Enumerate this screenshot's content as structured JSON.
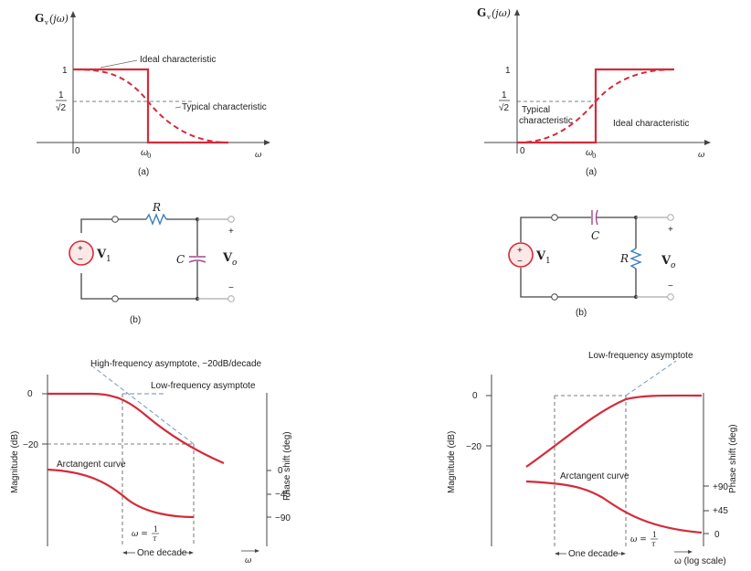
{
  "left": {
    "a": {
      "ylabel": "G",
      "ylabel_sub": "v",
      "ylabel_arg": "(jω)",
      "tick_1": "1",
      "frac_num": "1",
      "frac_den": "√2",
      "ideal": "Ideal characteristic",
      "typical": "Typical characteristic",
      "x0": "0",
      "w0": "ω",
      "w0_sub": "0",
      "w": "ω",
      "caption": "(a)"
    },
    "b": {
      "R": "R",
      "C": "C",
      "V1": "V",
      "V1_sub": "1",
      "Vo": "V",
      "Vo_sub": "o",
      "plus": "+",
      "minus": "−",
      "caption": "(b)"
    },
    "c": {
      "hf": "High-frequency asymptote, −20dB/decade",
      "lf": "Low-frequency asymptote",
      "y0": "0",
      "y20": "−20",
      "mag": "Magnitude (dB)",
      "phase": "Phase shift (deg)",
      "arct": "Arctangent curve",
      "p0": "0",
      "p45": "−45",
      "p90": "−90",
      "wlabel": "ω =",
      "fnum": "1",
      "fden": "τ",
      "decade": "One decade",
      "w": "ω"
    }
  },
  "right": {
    "a": {
      "ylabel": "G",
      "ylabel_sub": "v",
      "ylabel_arg": "(jω)",
      "tick_1": "1",
      "frac_num": "1",
      "frac_den": "√2",
      "typical1": "Typical",
      "typical2": "characteristic",
      "ideal": "Ideal characteristic",
      "x0": "0",
      "w0": "ω",
      "w0_sub": "0",
      "w": "ω",
      "caption": "(a)"
    },
    "b": {
      "C": "C",
      "R": "R",
      "V1": "V",
      "V1_sub": "1",
      "Vo": "V",
      "Vo_sub": "o",
      "plus": "+",
      "minus": "−",
      "caption": "(b)"
    },
    "c": {
      "lf": "Low-frequency asymptote",
      "y0": "0",
      "y20": "−20",
      "mag": "Magnitude (dB)",
      "phase": "Phase shift (deg)",
      "arct": "Arctangent curve",
      "p90": "+90",
      "p45": "+45",
      "p0": "0",
      "wlabel": "ω =",
      "fnum": "1",
      "fden": "τ",
      "decade": "One decade",
      "wlog": "ω (log scale)"
    }
  },
  "colors": {
    "curve": "#d42b3a",
    "resistor": "#3a7fc0",
    "capacitor": "#a04a8a",
    "source": "#d42b3a"
  }
}
